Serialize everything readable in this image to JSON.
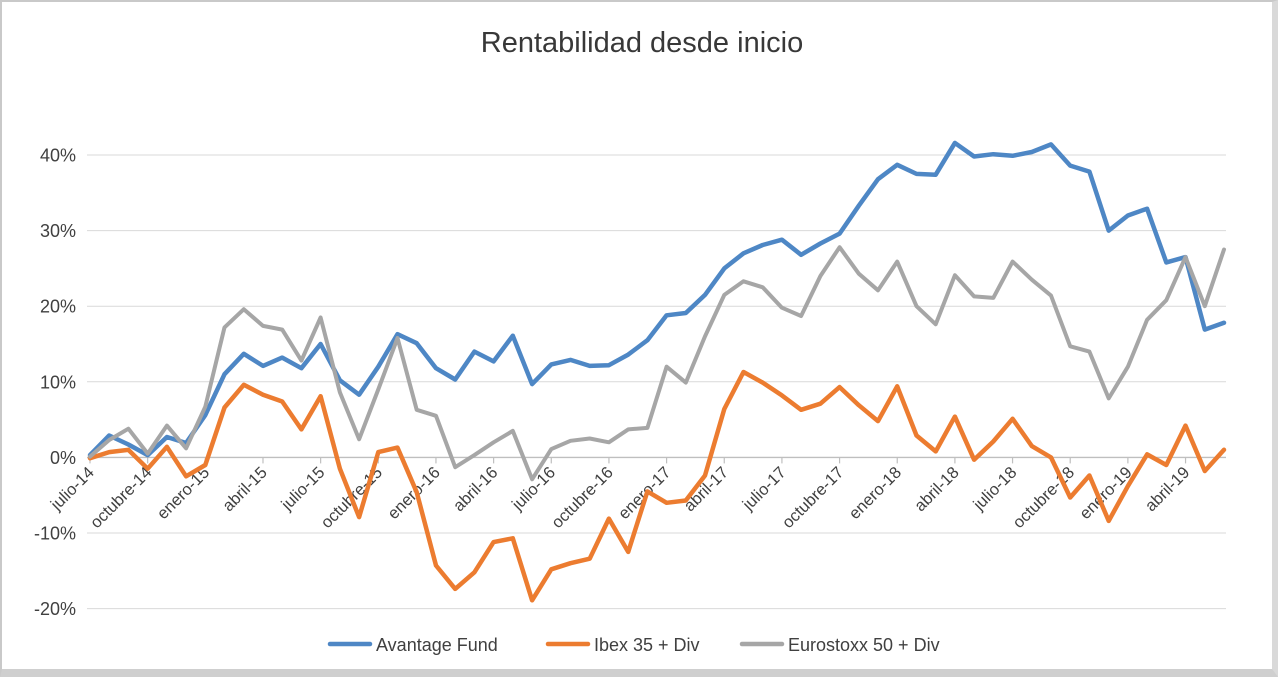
{
  "chart_data": {
    "type": "line",
    "title": "Rentabilidad desde inicio",
    "x": [
      "julio-14",
      "agosto-14",
      "septiembre-14",
      "octubre-14",
      "noviembre-14",
      "diciembre-14",
      "enero-15",
      "febrero-15",
      "marzo-15",
      "abril-15",
      "mayo-15",
      "junio-15",
      "julio-15",
      "agosto-15",
      "septiembre-15",
      "octubre-15",
      "noviembre-15",
      "diciembre-15",
      "enero-16",
      "febrero-16",
      "marzo-16",
      "abril-16",
      "mayo-16",
      "junio-16",
      "julio-16",
      "agosto-16",
      "septiembre-16",
      "octubre-16",
      "noviembre-16",
      "diciembre-16",
      "enero-17",
      "febrero-17",
      "marzo-17",
      "abril-17",
      "mayo-17",
      "junio-17",
      "julio-17",
      "agosto-17",
      "septiembre-17",
      "octubre-17",
      "noviembre-17",
      "diciembre-17",
      "enero-18",
      "febrero-18",
      "marzo-18",
      "abril-18",
      "mayo-18",
      "junio-18",
      "julio-18",
      "agosto-18",
      "septiembre-18",
      "octubre-18",
      "noviembre-18",
      "diciembre-18",
      "enero-19",
      "febrero-19",
      "marzo-19",
      "abril-19",
      "mayo-19",
      "junio-19"
    ],
    "x_tick_labels": [
      "julio-14",
      "octubre-14",
      "enero-15",
      "abril-15",
      "julio-15",
      "octubre-15",
      "enero-16",
      "abril-16",
      "julio-16",
      "octubre-16",
      "enero-17",
      "abril-17",
      "julio-17",
      "octubre-17",
      "enero-18",
      "abril-18",
      "julio-18",
      "octubre-18",
      "enero-19",
      "abril-19"
    ],
    "x_tick_every": 3,
    "y_tick_labels": [
      "40%",
      "30%",
      "20%",
      "10%",
      "0%",
      "-10%",
      "-20%"
    ],
    "y_ticks": [
      40,
      30,
      20,
      10,
      0,
      -10,
      -20
    ],
    "ylim": [
      -20,
      45
    ],
    "grid": "horizontal",
    "legend_position": "bottom",
    "series": [
      {
        "name": "Avantage Fund",
        "color": "#4E87C5",
        "values": [
          0.3,
          2.9,
          1.7,
          0.3,
          2.7,
          1.9,
          5.6,
          11.0,
          13.7,
          12.1,
          13.2,
          11.8,
          15.0,
          10.2,
          8.3,
          12.0,
          16.3,
          15.1,
          11.8,
          10.3,
          14.0,
          12.7,
          16.1,
          9.7,
          12.3,
          12.9,
          12.1,
          12.2,
          13.6,
          15.5,
          18.8,
          19.1,
          21.5,
          25.0,
          27.0,
          28.1,
          28.8,
          26.8,
          28.3,
          29.6,
          33.3,
          36.8,
          38.7,
          37.5,
          37.4,
          41.6,
          39.8,
          40.1,
          39.9,
          40.4,
          41.4,
          38.6,
          37.8,
          30.0,
          32.0,
          32.9,
          25.8,
          26.5,
          16.9,
          17.8
        ]
      },
      {
        "name": "Ibex 35 + Div",
        "color": "#EC7C30",
        "values": [
          -0.1,
          0.7,
          1.0,
          -1.5,
          1.4,
          -2.5,
          -1.0,
          6.6,
          9.6,
          8.3,
          7.4,
          3.7,
          8.1,
          -1.5,
          -7.9,
          0.7,
          1.3,
          -4.6,
          -14.3,
          -17.4,
          -15.2,
          -11.2,
          -10.7,
          -18.9,
          -14.8,
          -14.0,
          -13.4,
          -8.1,
          -12.5,
          -4.5,
          -6.0,
          -5.7,
          -2.4,
          6.4,
          11.3,
          9.9,
          8.2,
          6.3,
          7.1,
          9.3,
          6.9,
          4.8,
          9.4,
          2.9,
          0.8,
          5.4,
          -0.3,
          2.1,
          5.1,
          1.5,
          0.0,
          -5.3,
          -2.4,
          -8.4,
          -3.8,
          0.4,
          -1.0,
          4.2,
          -1.8,
          1.0
        ]
      },
      {
        "name": "Eurostoxx 50 + Div",
        "color": "#A6A6A6",
        "values": [
          0.1,
          2.3,
          3.8,
          0.5,
          4.2,
          1.2,
          6.7,
          17.2,
          19.6,
          17.4,
          16.9,
          12.8,
          18.5,
          8.6,
          2.4,
          9.0,
          15.8,
          6.3,
          5.5,
          -1.3,
          0.3,
          2.0,
          3.5,
          -2.9,
          1.1,
          2.2,
          2.5,
          2.0,
          3.7,
          3.9,
          12.0,
          9.9,
          16.0,
          21.5,
          23.3,
          22.5,
          19.8,
          18.7,
          24.0,
          27.8,
          24.3,
          22.1,
          25.9,
          20.0,
          17.6,
          24.1,
          21.3,
          21.1,
          25.9,
          23.5,
          21.4,
          14.7,
          14.0,
          7.8,
          12.0,
          18.2,
          20.8,
          26.5,
          20.0,
          27.5
        ]
      }
    ]
  }
}
